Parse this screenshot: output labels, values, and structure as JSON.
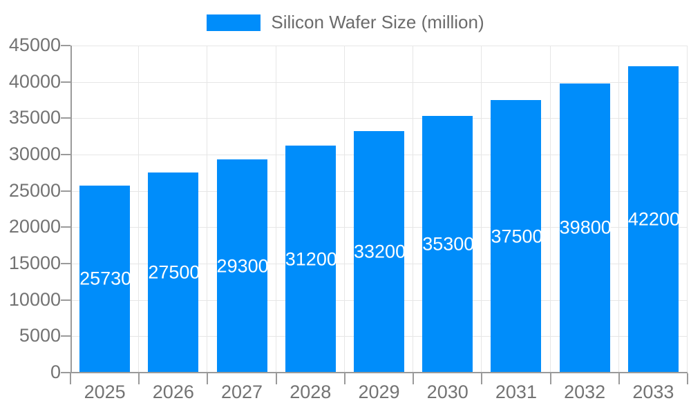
{
  "chart_data": {
    "type": "bar",
    "title": "Silicon Wafer Size (million)",
    "legend": {
      "label": "Silicon Wafer Size (million)",
      "position": "top"
    },
    "categories": [
      "2025",
      "2026",
      "2027",
      "2028",
      "2029",
      "2030",
      "2031",
      "2032",
      "2033"
    ],
    "series": [
      {
        "name": "Silicon Wafer Size (million)",
        "values": [
          25730,
          27500,
          29300,
          31200,
          33200,
          35300,
          37500,
          39800,
          42200
        ]
      }
    ],
    "value_labels_shown": true,
    "xlabel": "",
    "ylabel": "",
    "ylim": [
      0,
      45000
    ],
    "ytick_step": 5000,
    "yticks": [
      0,
      5000,
      10000,
      15000,
      20000,
      25000,
      30000,
      35000,
      40000,
      45000
    ],
    "grid": true,
    "colors": {
      "bar": "#008DFA",
      "value_label": "#FFFFFF",
      "axis_label": "#737373",
      "legend_text": "#6B6B6B",
      "gridline": "#E6E6E6",
      "axis_line": "#9A9A9A",
      "background": "#FFFFFF"
    }
  }
}
